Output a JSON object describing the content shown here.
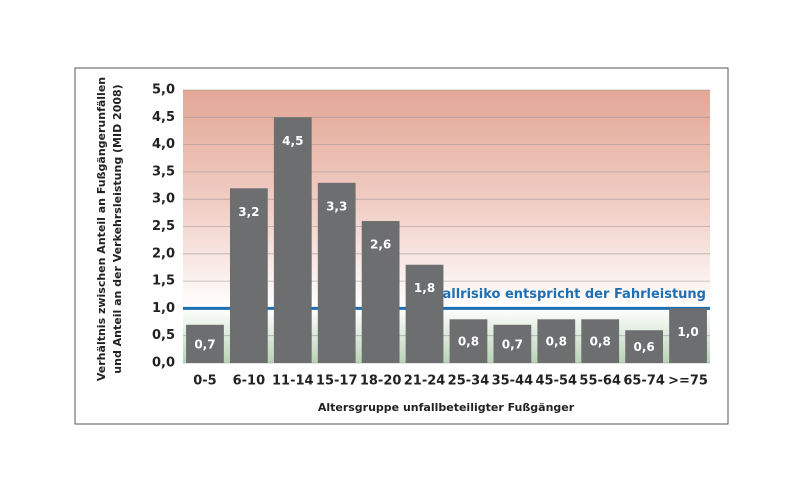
{
  "chart_data": {
    "type": "bar",
    "categories": [
      "0-5",
      "6-10",
      "11-14",
      "15-17",
      "18-20",
      "21-24",
      "25-34",
      "35-44",
      "45-54",
      "55-64",
      "65-74",
      ">=75"
    ],
    "values": [
      0.7,
      3.2,
      4.5,
      3.3,
      2.6,
      1.8,
      0.8,
      0.7,
      0.8,
      0.8,
      0.6,
      1.0
    ],
    "value_labels": [
      "0,7",
      "3,2",
      "4,5",
      "3,3",
      "2,6",
      "1,8",
      "0,8",
      "0,7",
      "0,8",
      "0,8",
      "0,6",
      "1,0"
    ],
    "color": "#6d6e70",
    "ylim": [
      0,
      5
    ],
    "yticks": [
      {
        "value": 0,
        "label": "0,0"
      },
      {
        "value": 0.5,
        "label": "0,5"
      },
      {
        "value": 1,
        "label": "1,0"
      },
      {
        "value": 1.5,
        "label": "1,5"
      },
      {
        "value": 2,
        "label": "2,0"
      },
      {
        "value": 2.5,
        "label": "2,5"
      },
      {
        "value": 3,
        "label": "3,0"
      },
      {
        "value": 3.5,
        "label": "3,5"
      },
      {
        "value": 4,
        "label": "4,0"
      },
      {
        "value": 4.5,
        "label": "4,5"
      },
      {
        "value": 5,
        "label": "5,0"
      }
    ],
    "grid": true,
    "y_label": [
      "Verhältnis zwischen Anteil an Fußgängerunfällen",
      "und Anteil an der Verkehrsleistung (MID 2008)"
    ],
    "x_label": "Altersgruppe unfallbeteiligter Fußgänger",
    "reference_line": {
      "value": 1,
      "label": "Unfallrisiko entspricht der Fahrleistung",
      "color": "#1f6fb3"
    }
  }
}
